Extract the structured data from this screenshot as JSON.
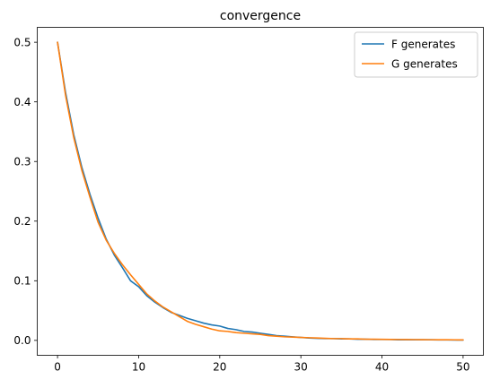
{
  "chart_data": {
    "type": "line",
    "title": "convergence",
    "xlabel": "",
    "ylabel": "",
    "xlim": [
      -2.5,
      52.5
    ],
    "ylim": [
      -0.025,
      0.525
    ],
    "x_ticks": [
      0,
      10,
      20,
      30,
      40,
      50
    ],
    "x_tick_labels": [
      "0",
      "10",
      "20",
      "30",
      "40",
      "50"
    ],
    "y_ticks": [
      0.0,
      0.1,
      0.2,
      0.3,
      0.4,
      0.5
    ],
    "y_tick_labels": [
      "0.0",
      "0.1",
      "0.2",
      "0.3",
      "0.4",
      "0.5"
    ],
    "grid": false,
    "legend_position": "top-right",
    "series": [
      {
        "name": "F generates",
        "color": "#1f77b4",
        "x": [
          0,
          1,
          2,
          3,
          4,
          5,
          6,
          7,
          8,
          9,
          10,
          11,
          12,
          13,
          14,
          15,
          16,
          17,
          18,
          19,
          20,
          21,
          22,
          23,
          24,
          25,
          26,
          27,
          28,
          29,
          30,
          31,
          32,
          33,
          34,
          35,
          36,
          37,
          38,
          39,
          40,
          41,
          42,
          43,
          44,
          45,
          46,
          47,
          48,
          49,
          50
        ],
        "values": [
          0.5,
          0.415,
          0.345,
          0.29,
          0.245,
          0.205,
          0.17,
          0.143,
          0.122,
          0.1,
          0.09,
          0.075,
          0.064,
          0.055,
          0.047,
          0.042,
          0.037,
          0.033,
          0.029,
          0.026,
          0.024,
          0.02,
          0.018,
          0.015,
          0.014,
          0.012,
          0.01,
          0.008,
          0.007,
          0.006,
          0.005,
          0.004,
          0.0035,
          0.003,
          0.003,
          0.0025,
          0.0025,
          0.002,
          0.002,
          0.0015,
          0.0015,
          0.0015,
          0.001,
          0.001,
          0.001,
          0.001,
          0.001,
          0.0008,
          0.0008,
          0.0007,
          0.0006
        ]
      },
      {
        "name": "G generates",
        "color": "#ff7f0e",
        "x": [
          0,
          1,
          2,
          3,
          4,
          5,
          6,
          7,
          8,
          9,
          10,
          11,
          12,
          13,
          14,
          15,
          16,
          17,
          18,
          19,
          20,
          21,
          22,
          23,
          24,
          25,
          26,
          27,
          28,
          29,
          30,
          31,
          32,
          33,
          34,
          35,
          36,
          37,
          38,
          39,
          40,
          41,
          42,
          43,
          44,
          45,
          46,
          47,
          48,
          49,
          50
        ],
        "values": [
          0.5,
          0.41,
          0.34,
          0.285,
          0.24,
          0.198,
          0.168,
          0.146,
          0.127,
          0.11,
          0.094,
          0.078,
          0.066,
          0.056,
          0.048,
          0.04,
          0.032,
          0.027,
          0.023,
          0.019,
          0.016,
          0.015,
          0.013,
          0.012,
          0.011,
          0.01,
          0.008,
          0.007,
          0.006,
          0.0055,
          0.005,
          0.0045,
          0.004,
          0.0035,
          0.003,
          0.003,
          0.0025,
          0.0025,
          0.002,
          0.002,
          0.0018,
          0.0016,
          0.0015,
          0.0014,
          0.0013,
          0.0012,
          0.0011,
          0.001,
          0.001,
          0.0009,
          0.0008
        ]
      }
    ]
  }
}
